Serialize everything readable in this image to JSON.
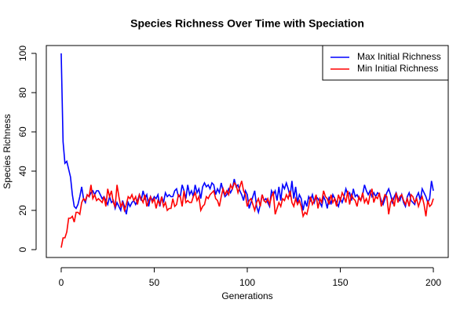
{
  "chart_data": {
    "type": "line",
    "title": "Species Richness Over Time with Speciation",
    "xlabel": "Generations",
    "ylabel": "Species Richness",
    "x": [
      0,
      1,
      2,
      3,
      4,
      5,
      6,
      7,
      8,
      9,
      10,
      11,
      12,
      13,
      14,
      15,
      16,
      17,
      18,
      19,
      20,
      21,
      22,
      23,
      24,
      25,
      26,
      27,
      28,
      29,
      30,
      31,
      32,
      33,
      34,
      35,
      36,
      37,
      38,
      39,
      40,
      41,
      42,
      43,
      44,
      45,
      46,
      47,
      48,
      49,
      50,
      51,
      52,
      53,
      54,
      55,
      56,
      57,
      58,
      59,
      60,
      61,
      62,
      63,
      64,
      65,
      66,
      67,
      68,
      69,
      70,
      71,
      72,
      73,
      74,
      75,
      76,
      77,
      78,
      79,
      80,
      81,
      82,
      83,
      84,
      85,
      86,
      87,
      88,
      89,
      90,
      91,
      92,
      93,
      94,
      95,
      96,
      97,
      98,
      99,
      100,
      101,
      102,
      103,
      104,
      105,
      106,
      107,
      108,
      109,
      110,
      111,
      112,
      113,
      114,
      115,
      116,
      117,
      118,
      119,
      120,
      121,
      122,
      123,
      124,
      125,
      126,
      127,
      128,
      129,
      130,
      131,
      132,
      133,
      134,
      135,
      136,
      137,
      138,
      139,
      140,
      141,
      142,
      143,
      144,
      145,
      146,
      147,
      148,
      149,
      150,
      151,
      152,
      153,
      154,
      155,
      156,
      157,
      158,
      159,
      160,
      161,
      162,
      163,
      164,
      165,
      166,
      167,
      168,
      169,
      170,
      171,
      172,
      173,
      174,
      175,
      176,
      177,
      178,
      179,
      180,
      181,
      182,
      183,
      184,
      185,
      186,
      187,
      188,
      189,
      190,
      191,
      192,
      193,
      194,
      195,
      196,
      197,
      198,
      199,
      200
    ],
    "series": [
      {
        "name": "Max Initial Richness",
        "color": "#0000ff",
        "values": [
          100,
          55,
          44,
          45,
          41,
          37,
          28,
          22,
          21,
          23,
          27,
          32,
          26,
          24,
          28,
          27,
          29,
          30,
          28,
          30,
          30,
          28,
          26,
          27,
          25,
          23,
          27,
          24,
          25,
          21,
          24,
          22,
          20,
          25,
          22,
          18,
          24,
          22,
          24,
          25,
          23,
          25,
          28,
          25,
          30,
          26,
          28,
          22,
          27,
          25,
          27,
          26,
          28,
          22,
          27,
          24,
          29,
          27,
          28,
          27,
          27,
          30,
          31,
          27,
          27,
          33,
          30,
          26,
          33,
          28,
          30,
          27,
          33,
          29,
          31,
          26,
          32,
          34,
          32,
          33,
          31,
          34,
          33,
          28,
          31,
          29,
          34,
          30,
          27,
          28,
          31,
          29,
          31,
          36,
          32,
          33,
          30,
          28,
          25,
          30,
          28,
          21,
          24,
          27,
          30,
          22,
          19,
          23,
          28,
          25,
          26,
          24,
          22,
          30,
          28,
          30,
          25,
          32,
          25,
          33,
          31,
          34,
          31,
          27,
          35,
          26,
          32,
          24,
          28,
          26,
          20,
          25,
          22,
          27,
          25,
          28,
          24,
          27,
          26,
          24,
          22,
          27,
          25,
          21,
          27,
          23,
          28,
          26,
          24,
          22,
          26,
          24,
          27,
          31,
          28,
          29,
          25,
          31,
          27,
          28,
          26,
          25,
          28,
          33,
          30,
          28,
          30,
          27,
          29,
          27,
          29,
          28,
          25,
          23,
          26,
          29,
          31,
          28,
          24,
          27,
          29,
          26,
          25,
          28,
          24,
          22,
          27,
          29,
          25,
          24,
          23,
          27,
          29,
          25,
          31,
          29,
          27,
          24,
          26,
          35,
          30
        ]
      },
      {
        "name": "Min Initial Richness",
        "color": "#ff0000",
        "values": [
          1,
          6,
          6,
          9,
          16,
          16,
          17,
          14,
          19,
          19,
          18,
          24,
          26,
          25,
          28,
          27,
          33,
          26,
          28,
          25,
          26,
          25,
          24,
          27,
          22,
          31,
          27,
          30,
          24,
          22,
          33,
          27,
          22,
          24,
          20,
          23,
          27,
          26,
          28,
          25,
          27,
          23,
          28,
          26,
          24,
          28,
          22,
          25,
          27,
          24,
          26,
          21,
          25,
          23,
          27,
          22,
          24,
          20,
          21,
          21,
          26,
          22,
          23,
          28,
          27,
          22,
          30,
          24,
          25,
          24,
          24,
          27,
          29,
          25,
          27,
          20,
          22,
          23,
          27,
          26,
          28,
          29,
          30,
          26,
          25,
          22,
          27,
          31,
          28,
          30,
          28,
          33,
          31,
          34,
          33,
          29,
          32,
          35,
          30,
          28,
          22,
          25,
          26,
          23,
          20,
          24,
          26,
          22,
          28,
          25,
          24,
          26,
          23,
          27,
          29,
          18,
          21,
          24,
          22,
          26,
          25,
          28,
          26,
          30,
          24,
          22,
          26,
          23,
          25,
          22,
          17,
          19,
          18,
          22,
          27,
          23,
          25,
          28,
          21,
          26,
          24,
          30,
          27,
          26,
          23,
          28,
          24,
          26,
          22,
          28,
          25,
          29,
          27,
          24,
          30,
          23,
          28,
          26,
          25,
          22,
          27,
          25,
          29,
          24,
          26,
          23,
          28,
          31,
          24,
          27,
          26,
          29,
          22,
          25,
          28,
          27,
          18,
          24,
          26,
          22,
          29,
          24,
          27,
          28,
          25,
          23,
          26,
          22,
          28,
          27,
          24,
          26,
          22,
          25,
          27,
          23,
          17,
          25,
          22,
          23,
          26
        ]
      }
    ],
    "xlim": [
      -8,
      208
    ],
    "ylim": [
      -4,
      104
    ],
    "xticks": [
      0,
      50,
      100,
      150,
      200
    ],
    "yticks": [
      0,
      20,
      40,
      60,
      80,
      100
    ],
    "legend": "topright"
  }
}
